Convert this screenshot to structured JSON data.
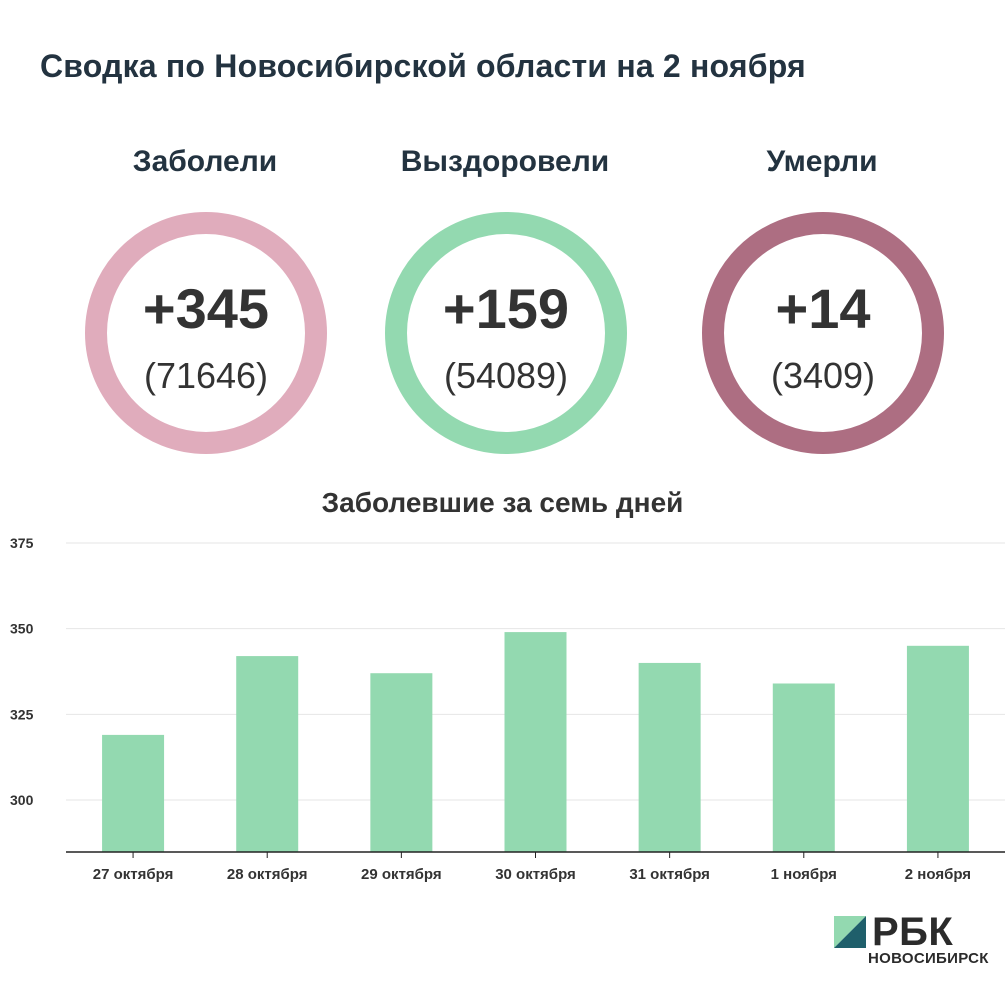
{
  "page_title": "Сводка по Новосибирской области на 2 ноября",
  "stats": [
    {
      "label": "Заболели",
      "delta": "+345",
      "total": "(71646)",
      "color": "#e0acbc"
    },
    {
      "label": "Выздоровели",
      "delta": "+159",
      "total": "(54089)",
      "color": "#93d9b0"
    },
    {
      "label": "Умерли",
      "delta": "+14",
      "total": "(3409)",
      "color": "#ad6e82"
    }
  ],
  "chart_data": {
    "type": "bar",
    "title": "Заболевшие за семь дней",
    "categories": [
      "27 октября",
      "28 октября",
      "29 октября",
      "30 октября",
      "31 октября",
      "1 ноября",
      "2 ноября"
    ],
    "values": [
      319,
      342,
      337,
      349,
      340,
      334,
      345
    ],
    "ylim": [
      285,
      375
    ],
    "yticks": [
      300,
      325,
      350,
      375
    ],
    "xlabel": "",
    "ylabel": "",
    "grid": true,
    "bar_color": "#93d9b0"
  },
  "brand": {
    "name": "РБК",
    "city": "НОВОСИБИРСК",
    "mark_colors": [
      "#93d9b0",
      "#1f5f6b"
    ]
  }
}
